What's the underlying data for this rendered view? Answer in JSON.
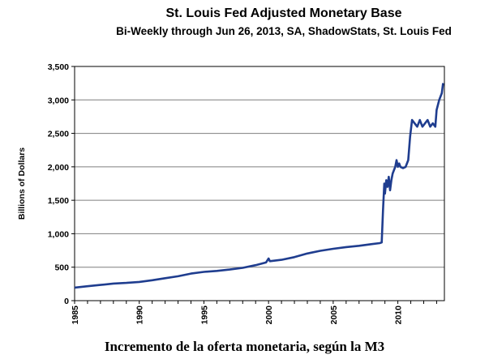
{
  "chart_data": {
    "type": "line",
    "title": "St. Louis Fed Adjusted Monetary Base",
    "subtitle": "Bi-Weekly through Jun 26, 2013, SA, ShadowStats, St. Louis Fed",
    "ylabel": "Billions of Dollars",
    "xlabel": "",
    "xlim": [
      1985,
      2013.6
    ],
    "ylim": [
      0,
      3500
    ],
    "x_ticks": [
      "1985",
      "1990",
      "1995",
      "2000",
      "2005",
      "2010"
    ],
    "x_tick_values": [
      1985,
      1990,
      1995,
      2000,
      2005,
      2010
    ],
    "y_ticks": [
      "0",
      "500",
      "1,000",
      "1,500",
      "2,000",
      "2,500",
      "3,000",
      "3,500"
    ],
    "y_tick_values": [
      0,
      500,
      1000,
      1500,
      2000,
      2500,
      3000,
      3500
    ],
    "grid": true,
    "line_color": "#1f3d8f",
    "series": [
      {
        "name": "",
        "x": [
          1985,
          1986,
          1987,
          1988,
          1989,
          1990,
          1991,
          1992,
          1993,
          1994,
          1995,
          1996,
          1997,
          1998,
          1999,
          1999.8,
          2000.0,
          2000.1,
          2001,
          2002,
          2003,
          2004,
          2005,
          2006,
          2007,
          2008,
          2008.6,
          2008.75,
          2008.85,
          2008.95,
          2009.0,
          2009.1,
          2009.2,
          2009.3,
          2009.4,
          2009.5,
          2009.6,
          2009.7,
          2009.8,
          2009.9,
          2010.0,
          2010.1,
          2010.2,
          2010.4,
          2010.6,
          2010.8,
          2010.95,
          2011.1,
          2011.3,
          2011.5,
          2011.7,
          2011.9,
          2012.1,
          2012.3,
          2012.5,
          2012.7,
          2012.9,
          2013.0,
          2013.2,
          2013.4,
          2013.5
        ],
        "values": [
          195,
          215,
          235,
          255,
          265,
          280,
          305,
          335,
          365,
          405,
          430,
          445,
          465,
          490,
          530,
          570,
          630,
          590,
          610,
          650,
          705,
          745,
          775,
          800,
          820,
          845,
          860,
          870,
          1350,
          1750,
          1600,
          1800,
          1700,
          1850,
          1650,
          1800,
          1900,
          1950,
          2000,
          2100,
          2000,
          2050,
          2000,
          1980,
          2000,
          2100,
          2450,
          2700,
          2650,
          2600,
          2700,
          2600,
          2650,
          2700,
          2600,
          2650,
          2600,
          2850,
          3000,
          3100,
          3250
        ]
      }
    ]
  },
  "caption": "Incremento de la oferta monetaria, según la M3"
}
